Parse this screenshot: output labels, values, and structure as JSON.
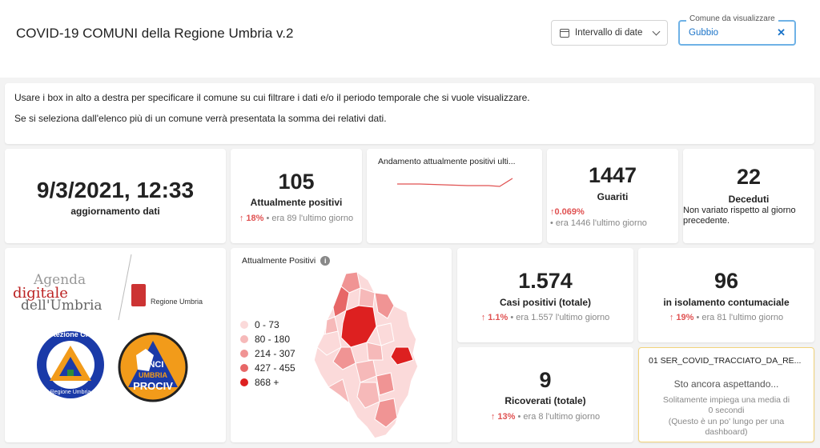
{
  "header": {
    "title": "COVID-19 COMUNI della Regione Umbria v.2",
    "date_filter_label": "Intervallo di date",
    "comune_filter": {
      "label": "Comune da visualizzare",
      "value": "Gubbio",
      "clear_icon": "close-icon"
    }
  },
  "info": {
    "line1": "Usare i box in alto a destra per specificare il comune su cui filtrare i dati e/o il periodo temporale che si vuole visualizzare.",
    "line2": "Se si seleziona dall'elenco più di un comune verrà presentata la somma dei relativi dati."
  },
  "update": {
    "datetime": "9/3/2021, 12:33",
    "label": "aggiornamento dati"
  },
  "positivi": {
    "value": "105",
    "label": "Attualmente positivi",
    "delta_pct": "18%",
    "delta_text": "era 89 l'ultimo giorno"
  },
  "trend": {
    "title": "Andamento attualmente positivi ulti..."
  },
  "guariti": {
    "value": "1447",
    "label": "Guariti",
    "delta_pct": "0.069%",
    "delta_text": "era 1446 l'ultimo giorno"
  },
  "deceduti": {
    "value": "22",
    "label": "Deceduti",
    "note": "Non variato rispetto al giorno precedente."
  },
  "logos": {
    "agenda_line1": "Agenda",
    "agenda_line2": "digitale",
    "agenda_line3": "dell'Umbria",
    "regione": "Regione Umbria",
    "protezione_top": "Protezione Civile",
    "protezione_bottom": "Regione Umbria",
    "anci_1": "ANCI",
    "anci_2": "UMBRIA",
    "anci_3": "PROCIV"
  },
  "map": {
    "title": "Attualmente Positivi",
    "legend": [
      {
        "label": "0 - 73",
        "color": "#fbdada"
      },
      {
        "label": "80 - 180",
        "color": "#f6b9b9"
      },
      {
        "label": "214 - 307",
        "color": "#f09494"
      },
      {
        "label": "427 - 455",
        "color": "#e76767"
      },
      {
        "label": "868 +",
        "color": "#dd2020"
      }
    ]
  },
  "casi": {
    "value": "1.574",
    "label": "Casi positivi (totale)",
    "delta_pct": "1.1%",
    "delta_text": "era 1.557 l'ultimo giorno"
  },
  "isolamento": {
    "value": "96",
    "label": "in isolamento contumaciale",
    "delta_pct": "19%",
    "delta_text": "era 81 l'ultimo giorno"
  },
  "ricoverati": {
    "value": "9",
    "label": "Ricoverati (totale)",
    "delta_pct": "13%",
    "delta_text": "era 8 l'ultimo giorno"
  },
  "waiting": {
    "title": "01 SER_COVID_TRACCIATO_DA_RE...",
    "heading": "Sto ancora aspettando...",
    "line1": "Solitamente impiega una media di",
    "line2": "0 secondi",
    "line3": "(Questo è un po' lungo per una",
    "line4": "dashboard)"
  },
  "colors": {
    "accent": "#1a73c8",
    "up": "#e05252",
    "spark": "#e05252"
  }
}
